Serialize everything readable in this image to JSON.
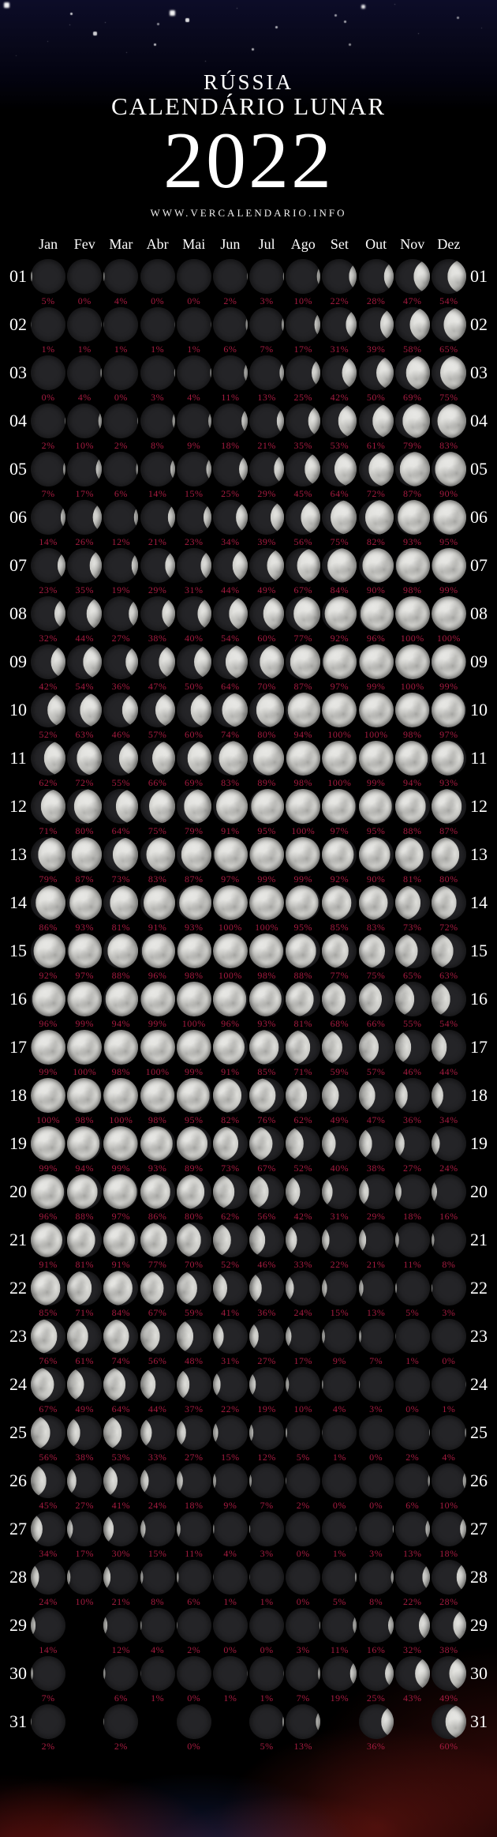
{
  "title": {
    "country": "RÚSSIA",
    "subtitle": "CALENDÁRIO LUNAR",
    "year": "2022",
    "website": "WWW.VERCALENDARIO.INFO"
  },
  "colors": {
    "background": "#000000",
    "text": "#ffffff",
    "percent_text": "#a61b40",
    "moon_lit": "#dededa",
    "moon_dark": "#242427",
    "sky_top": "#0c0c28",
    "nebula_red": "#8c1916",
    "nebula_blue": "#233782"
  },
  "months": [
    "Jan",
    "Fev",
    "Mar",
    "Abr",
    "Mai",
    "Jun",
    "Jul",
    "Ago",
    "Set",
    "Out",
    "Nov",
    "Dez"
  ],
  "calendar": {
    "days": [
      {
        "day": "01",
        "values": [
          5,
          0,
          4,
          0,
          0,
          2,
          3,
          10,
          22,
          28,
          47,
          54
        ]
      },
      {
        "day": "02",
        "values": [
          1,
          1,
          1,
          1,
          1,
          6,
          7,
          17,
          31,
          39,
          58,
          65
        ]
      },
      {
        "day": "03",
        "values": [
          0,
          4,
          0,
          3,
          4,
          11,
          13,
          25,
          42,
          50,
          69,
          75
        ]
      },
      {
        "day": "04",
        "values": [
          2,
          10,
          2,
          8,
          9,
          18,
          21,
          35,
          53,
          61,
          79,
          83
        ]
      },
      {
        "day": "05",
        "values": [
          7,
          17,
          6,
          14,
          15,
          25,
          29,
          45,
          64,
          72,
          87,
          90
        ]
      },
      {
        "day": "06",
        "values": [
          14,
          26,
          12,
          21,
          23,
          34,
          39,
          56,
          75,
          82,
          93,
          95
        ]
      },
      {
        "day": "07",
        "values": [
          23,
          35,
          19,
          29,
          31,
          44,
          49,
          67,
          84,
          90,
          98,
          99
        ]
      },
      {
        "day": "08",
        "values": [
          32,
          44,
          27,
          38,
          40,
          54,
          60,
          77,
          92,
          96,
          100,
          100
        ]
      },
      {
        "day": "09",
        "values": [
          42,
          54,
          36,
          47,
          50,
          64,
          70,
          87,
          97,
          99,
          100,
          99
        ]
      },
      {
        "day": "10",
        "values": [
          52,
          63,
          46,
          57,
          60,
          74,
          80,
          94,
          100,
          100,
          98,
          97
        ]
      },
      {
        "day": "11",
        "values": [
          62,
          72,
          55,
          66,
          69,
          83,
          89,
          98,
          100,
          99,
          94,
          93
        ]
      },
      {
        "day": "12",
        "values": [
          71,
          80,
          64,
          75,
          79,
          91,
          95,
          100,
          97,
          95,
          88,
          87
        ]
      },
      {
        "day": "13",
        "values": [
          79,
          87,
          73,
          83,
          87,
          97,
          99,
          99,
          92,
          90,
          81,
          80
        ]
      },
      {
        "day": "14",
        "values": [
          86,
          93,
          81,
          91,
          93,
          100,
          100,
          95,
          85,
          83,
          73,
          72
        ]
      },
      {
        "day": "15",
        "values": [
          92,
          97,
          88,
          96,
          98,
          100,
          98,
          88,
          77,
          75,
          65,
          63
        ]
      },
      {
        "day": "16",
        "values": [
          96,
          99,
          94,
          99,
          100,
          96,
          93,
          81,
          68,
          66,
          55,
          54
        ]
      },
      {
        "day": "17",
        "values": [
          99,
          100,
          98,
          100,
          99,
          91,
          85,
          71,
          59,
          57,
          46,
          44
        ]
      },
      {
        "day": "18",
        "values": [
          100,
          98,
          100,
          98,
          95,
          82,
          76,
          62,
          49,
          47,
          36,
          34
        ]
      },
      {
        "day": "19",
        "values": [
          99,
          94,
          99,
          93,
          89,
          73,
          67,
          52,
          40,
          38,
          27,
          24
        ]
      },
      {
        "day": "20",
        "values": [
          96,
          88,
          97,
          86,
          80,
          62,
          56,
          42,
          31,
          29,
          18,
          16
        ]
      },
      {
        "day": "21",
        "values": [
          91,
          81,
          91,
          77,
          70,
          52,
          46,
          33,
          22,
          21,
          11,
          8
        ]
      },
      {
        "day": "22",
        "values": [
          85,
          71,
          84,
          67,
          59,
          41,
          36,
          24,
          15,
          13,
          5,
          3
        ]
      },
      {
        "day": "23",
        "values": [
          76,
          61,
          74,
          56,
          48,
          31,
          27,
          17,
          9,
          7,
          1,
          0
        ]
      },
      {
        "day": "24",
        "values": [
          67,
          49,
          64,
          44,
          37,
          22,
          19,
          10,
          4,
          3,
          0,
          1
        ]
      },
      {
        "day": "25",
        "values": [
          56,
          38,
          53,
          33,
          27,
          15,
          12,
          5,
          1,
          0,
          2,
          4
        ]
      },
      {
        "day": "26",
        "values": [
          45,
          27,
          41,
          24,
          18,
          9,
          7,
          2,
          0,
          0,
          6,
          10
        ]
      },
      {
        "day": "27",
        "values": [
          34,
          17,
          30,
          15,
          11,
          4,
          3,
          0,
          1,
          3,
          13,
          18
        ]
      },
      {
        "day": "28",
        "values": [
          24,
          10,
          21,
          8,
          6,
          1,
          1,
          0,
          5,
          8,
          22,
          28
        ]
      },
      {
        "day": "29",
        "values": [
          14,
          null,
          12,
          4,
          2,
          0,
          0,
          3,
          11,
          16,
          32,
          38
        ]
      },
      {
        "day": "30",
        "values": [
          7,
          null,
          6,
          1,
          0,
          1,
          1,
          7,
          19,
          25,
          43,
          49
        ]
      },
      {
        "day": "31",
        "values": [
          2,
          null,
          2,
          null,
          0,
          null,
          5,
          13,
          null,
          36,
          null,
          60
        ]
      }
    ]
  }
}
